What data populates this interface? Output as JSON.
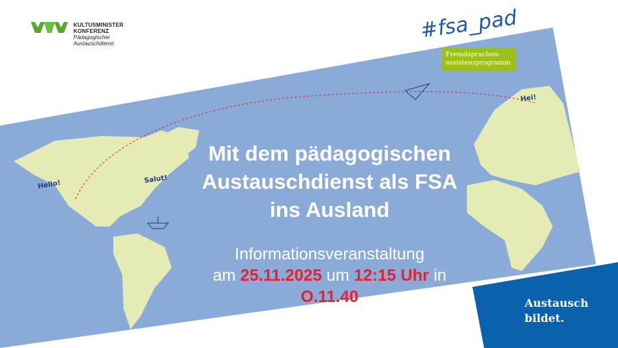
{
  "logo": {
    "mark": "KMK",
    "line1": "KULTUSMINISTER",
    "line2": "KONFERENZ",
    "line3": "Pädagogischer",
    "line4": "Austauschdienst"
  },
  "campaign": {
    "hashtag": "#fsa_pad",
    "program_line1": "Fremdsprachen-",
    "program_line2": "assistenzprogramm"
  },
  "title": {
    "line1": "Mit dem pädagogischen",
    "line2": "Austauschdienst als FSA",
    "line3": "ins Ausland"
  },
  "info": {
    "line1": "Informationsveranstaltung",
    "prefix": "am",
    "date": "25.11.2025",
    "mid": "um",
    "time": "12:15 Uhr",
    "suffix": "in",
    "room": "O.11.40"
  },
  "bubbles": {
    "hello": "Hello!",
    "salut": "Salut!",
    "hei": "Hei!"
  },
  "slogan": {
    "line1": "Austausch",
    "line2": "bildet."
  },
  "colors": {
    "map_blue": "#8aaad8",
    "land": "#e4ebb4",
    "dark_blue": "#0a62ad",
    "green": "#9cbf1c",
    "red": "#e8212b"
  }
}
